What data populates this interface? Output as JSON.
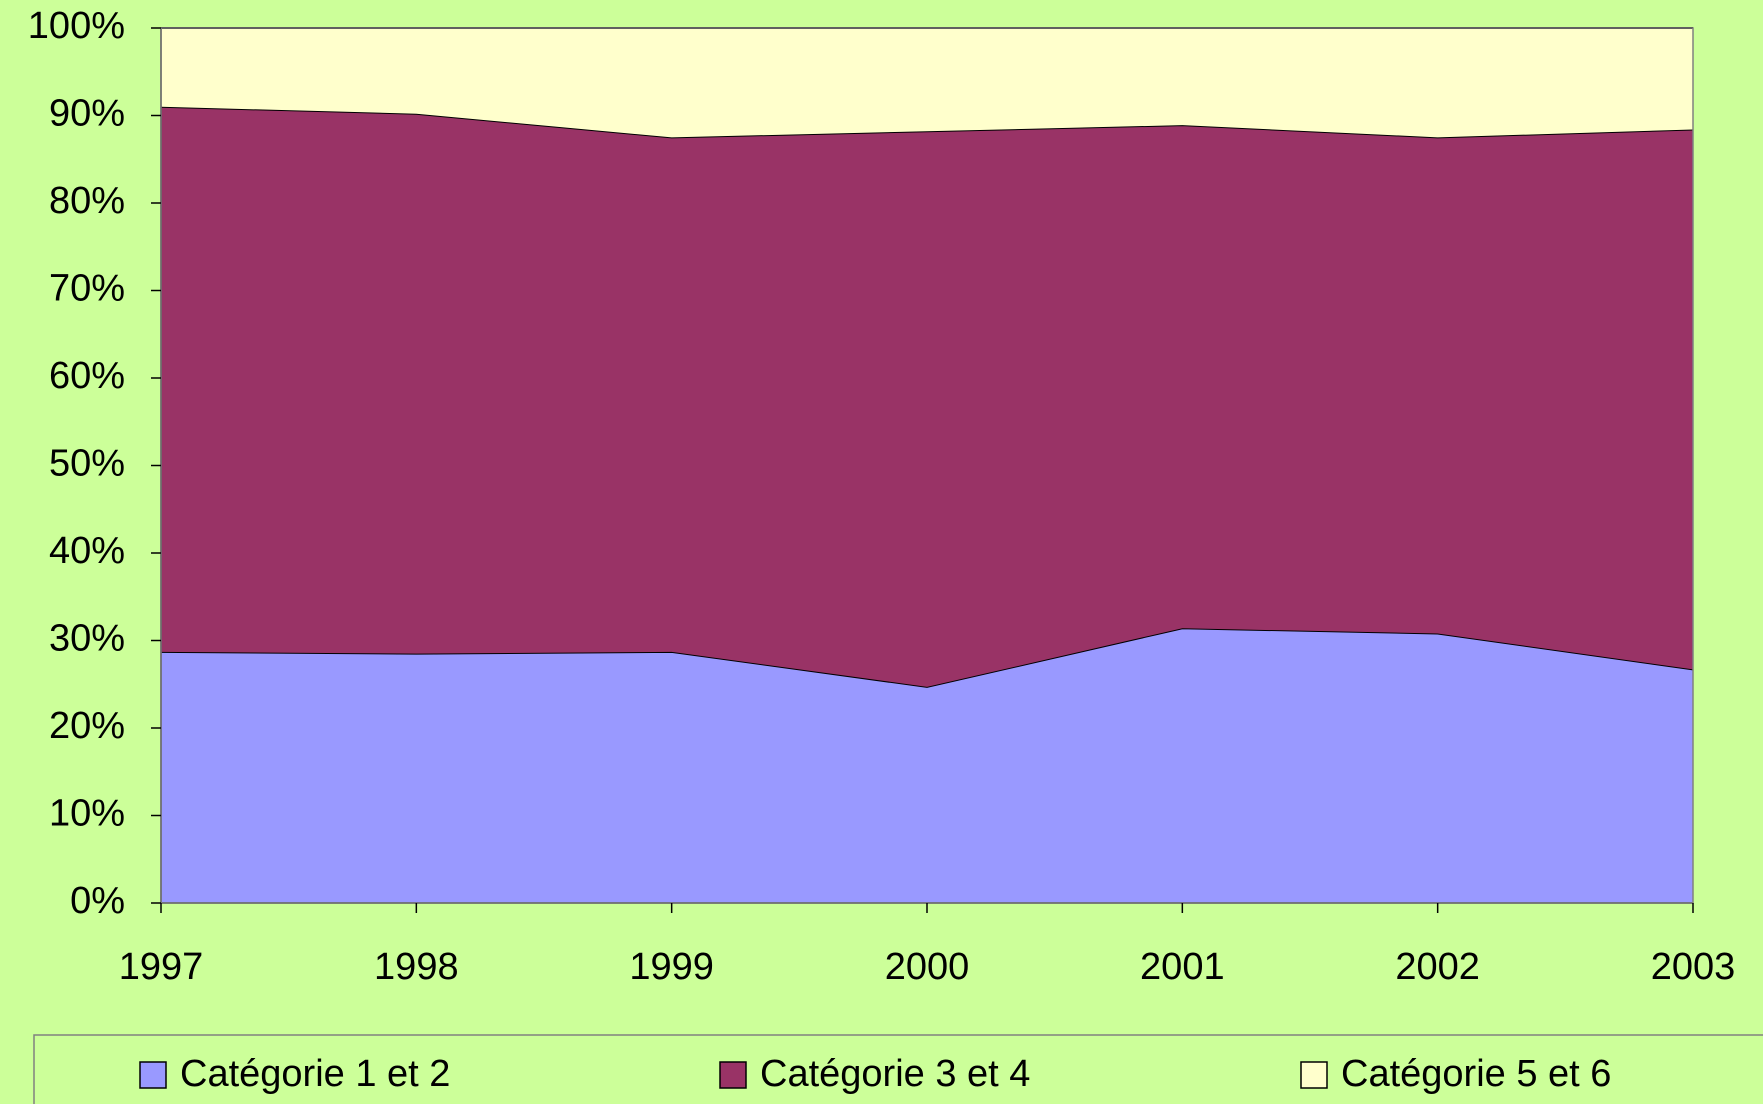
{
  "chart_data": {
    "type": "stacked_area_100",
    "categories": [
      "1997",
      "1998",
      "1999",
      "2000",
      "2001",
      "2002",
      "2003"
    ],
    "series": [
      {
        "name": "Catégorie 1 et 2",
        "color": "#9999ff",
        "values": [
          28.7,
          28.5,
          28.7,
          24.7,
          31.4,
          30.8,
          26.7
        ]
      },
      {
        "name": "Catégorie 3 et 4",
        "color": "#993366",
        "values": [
          62.3,
          61.7,
          58.8,
          63.5,
          57.5,
          56.7,
          61.7
        ]
      },
      {
        "name": "Catégorie 5 et 6",
        "color": "#ffffcc",
        "values": [
          9.0,
          9.8,
          12.5,
          11.8,
          11.1,
          12.5,
          11.6
        ]
      }
    ],
    "ylim": [
      0,
      100
    ],
    "yticks": [
      {
        "value": 0,
        "label": "0%"
      },
      {
        "value": 10,
        "label": "10%"
      },
      {
        "value": 20,
        "label": "20%"
      },
      {
        "value": 30,
        "label": "30%"
      },
      {
        "value": 40,
        "label": "40%"
      },
      {
        "value": 50,
        "label": "50%"
      },
      {
        "value": 60,
        "label": "60%"
      },
      {
        "value": 70,
        "label": "70%"
      },
      {
        "value": 80,
        "label": "80%"
      },
      {
        "value": 90,
        "label": "90%"
      },
      {
        "value": 100,
        "label": "100%"
      }
    ],
    "legend": "bottom",
    "background": "#ccff99"
  }
}
